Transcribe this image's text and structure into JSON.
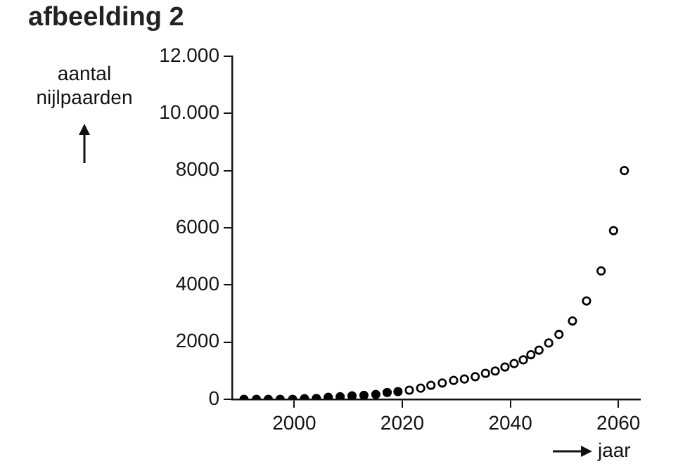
{
  "chart_data": {
    "type": "scatter",
    "title": "afbeelding 2",
    "xlabel": "jaar",
    "ylabel": "aantal nijlpaarden",
    "marker": "circle",
    "grid": false,
    "legend": false,
    "xlim": [
      1988.5,
      2064
    ],
    "xticks": [
      2000,
      2020,
      2040,
      2060
    ],
    "ylim": [
      0,
      12000
    ],
    "yticks": [
      0,
      2000,
      4000,
      6000,
      {
        "value": 8000,
        "label": "8000"
      },
      {
        "value": 10000,
        "label": "10.000"
      },
      {
        "value": 12000,
        "label": "12.000"
      }
    ],
    "series": [
      {
        "color": "#000000",
        "x": [
          1990.7,
          1993,
          1995.2,
          1997.4,
          1999.7,
          2001.9,
          2004.1,
          2006.3,
          2008.5,
          2010.7,
          2012.9,
          2015.1,
          2017.2,
          2019.2
        ],
        "values": [
          0,
          0,
          0,
          0,
          0,
          20,
          30,
          70,
          90,
          120,
          140,
          170,
          240,
          270
        ]
      },
      {
        "color": "#000000",
        "x": [
          2021.3,
          2023.4,
          2025.3,
          2027.4,
          2029.5,
          2031.5,
          2033.5,
          2035.4,
          2037.2,
          2039,
          2040.7,
          2042.4,
          2043.8,
          2045.3,
          2047.1,
          2049,
          2051.5,
          2054.1,
          2056.8,
          2059.1,
          2061.1
        ],
        "values": [
          320,
          390,
          490,
          570,
          660,
          710,
          790,
          910,
          990,
          1130,
          1250,
          1380,
          1560,
          1720,
          1970,
          2270,
          2740,
          3440,
          4490,
          5900,
          8000
        ]
      }
    ]
  }
}
